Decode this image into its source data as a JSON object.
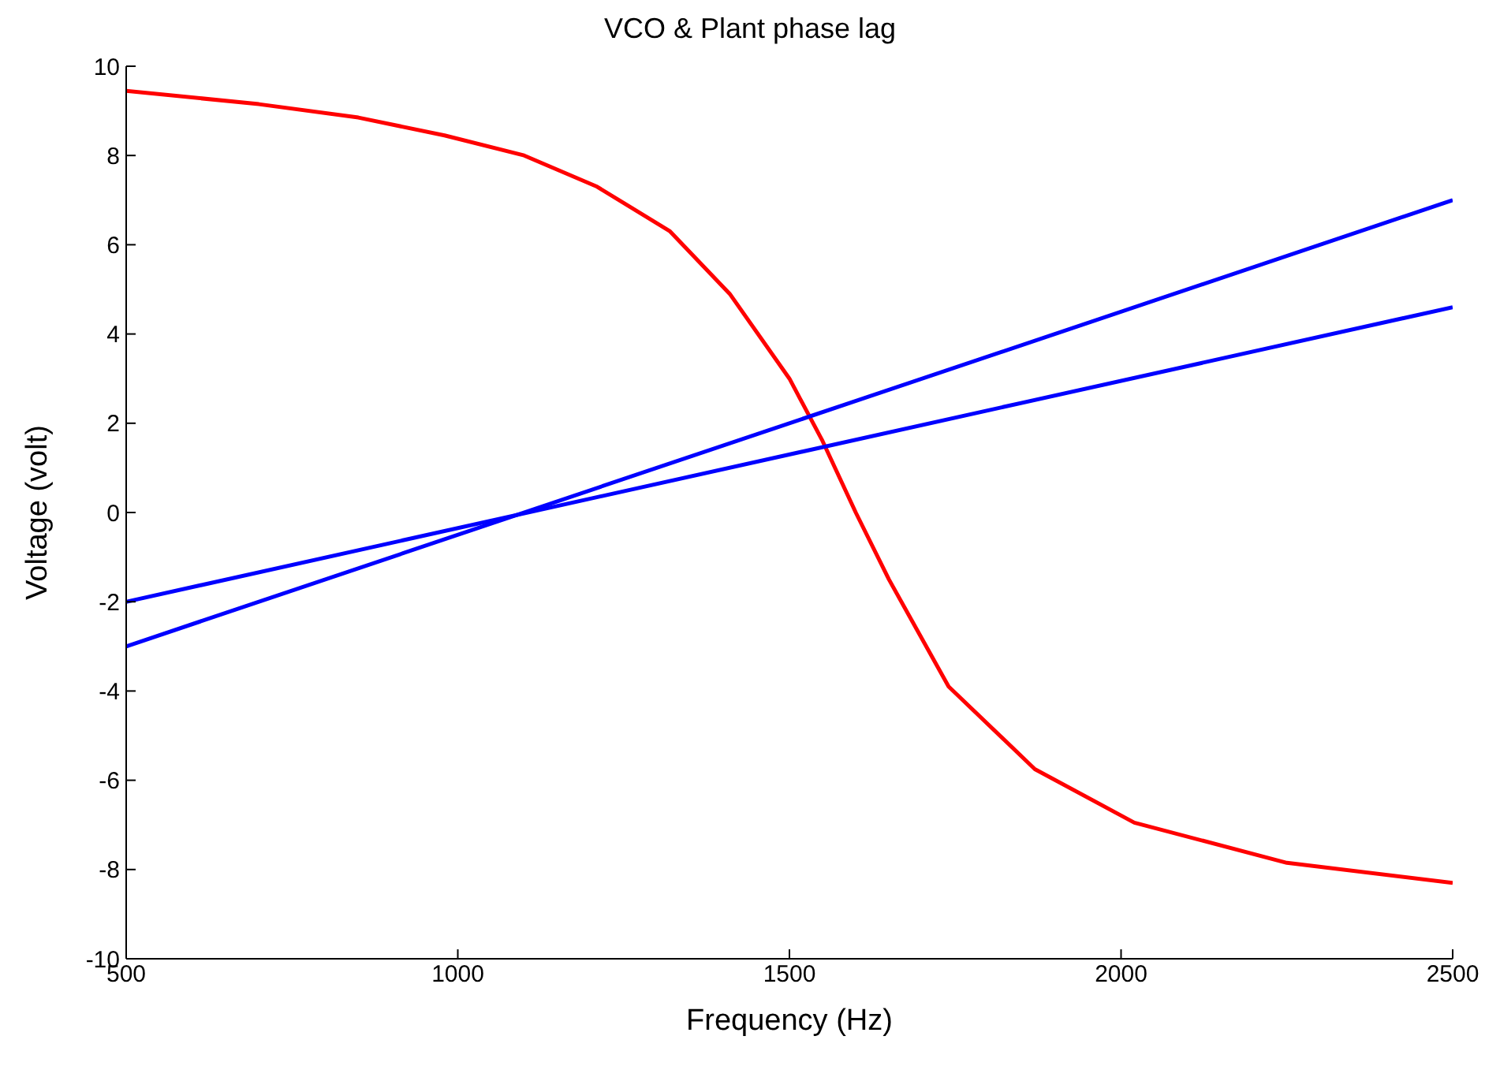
{
  "chart_data": {
    "type": "line",
    "title": "VCO & Plant phase lag",
    "xlabel": "Frequency (Hz)",
    "ylabel": "Voltage (volt)",
    "xlim": [
      500,
      2500
    ],
    "xticks": [
      500,
      1000,
      1500,
      2000,
      2500
    ],
    "ylim": [
      -10,
      10
    ],
    "yticks": [
      -10,
      -8,
      -6,
      -4,
      -2,
      0,
      2,
      4,
      6,
      8,
      10
    ],
    "grid": false,
    "series": [
      {
        "color": "#ff0000",
        "x": [
          500,
          700,
          850,
          980,
          1100,
          1210,
          1320,
          1410,
          1500,
          1550,
          1600,
          1650,
          1740,
          1870,
          2020,
          2250,
          2500
        ],
        "values": [
          9.45,
          9.15,
          8.85,
          8.45,
          8.0,
          7.3,
          6.3,
          4.9,
          3.0,
          1.6,
          0.0,
          -1.5,
          -3.9,
          -5.75,
          -6.95,
          -7.85,
          -8.3
        ]
      },
      {
        "color": "#0000ff",
        "x": [
          500,
          2500
        ],
        "values": [
          -3,
          7
        ]
      },
      {
        "color": "#0000ff",
        "x": [
          500,
          2500
        ],
        "values": [
          -2,
          4.6
        ]
      }
    ]
  }
}
